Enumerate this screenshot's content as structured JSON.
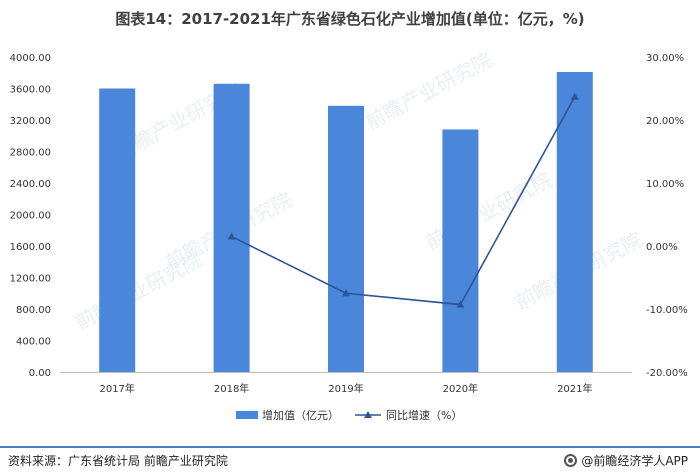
{
  "title": "图表14：2017-2021年广东省绿色石化产业增加值(单位：亿元，%)",
  "source": "资料来源：广东省统计局 前瞻产业研究院",
  "brand": "@前瞻经济学人APP",
  "watermark": "前瞻产业研究院",
  "colors": {
    "bar": "#4a86d9",
    "line": "#2f5597",
    "axis": "#bfbfbf",
    "accent": "#4a7ebb"
  },
  "chart_data": {
    "type": "bar",
    "categories": [
      "2017年",
      "2018年",
      "2019年",
      "2020年",
      "2021年"
    ],
    "series": [
      {
        "name": "增加值（亿元）",
        "type": "bar",
        "axis": "left",
        "values": [
          3600,
          3660,
          3380,
          3080,
          3810
        ]
      },
      {
        "name": "同比增速（%）",
        "type": "line",
        "axis": "right",
        "values": [
          null,
          1.5,
          -7.5,
          -9.3,
          23.7
        ]
      }
    ],
    "y_left": {
      "min": 0,
      "max": 4000,
      "ticks": [
        "0.00",
        "400.00",
        "800.00",
        "1200.00",
        "1600.00",
        "2000.00",
        "2400.00",
        "2800.00",
        "3200.00",
        "3600.00",
        "4000.00"
      ]
    },
    "y_right": {
      "min": -20,
      "max": 30,
      "ticks": [
        "-20.00%",
        "-10.00%",
        "0.00%",
        "10.00%",
        "20.00%",
        "30.00%"
      ]
    },
    "legend_position": "bottom",
    "grid": false
  }
}
